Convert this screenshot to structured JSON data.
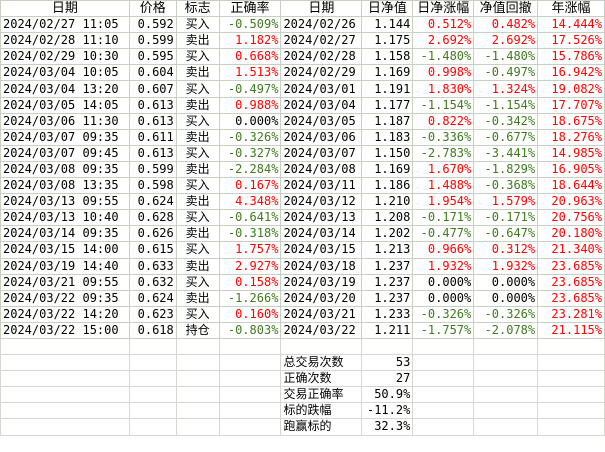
{
  "colors": {
    "positive": "#ff0000",
    "negative": "#3f7a1f",
    "neutral": "#000000",
    "grid": "#c8d0c4"
  },
  "headers": [
    "日期",
    "价格",
    "标志",
    "正确率",
    "日期",
    "日净值",
    "日净涨幅",
    "净值回撤",
    "年涨幅"
  ],
  "rows": [
    [
      "2024/02/27 11:05",
      "0.592",
      "买入",
      "-0.509%",
      "2024/02/26",
      "1.144",
      "0.512%",
      "0.482%",
      "14.444%"
    ],
    [
      "2024/02/28 11:10",
      "0.599",
      "卖出",
      "1.182%",
      "2024/02/27",
      "1.175",
      "2.692%",
      "2.692%",
      "17.526%"
    ],
    [
      "2024/02/29 10:30",
      "0.595",
      "买入",
      "0.668%",
      "2024/02/28",
      "1.158",
      "-1.480%",
      "-1.480%",
      "15.786%"
    ],
    [
      "2024/03/04 10:05",
      "0.604",
      "卖出",
      "1.513%",
      "2024/02/29",
      "1.169",
      "0.998%",
      "-0.497%",
      "16.942%"
    ],
    [
      "2024/03/04 13:20",
      "0.607",
      "买入",
      "-0.497%",
      "2024/03/01",
      "1.191",
      "1.830%",
      "1.324%",
      "19.082%"
    ],
    [
      "2024/03/05 14:05",
      "0.613",
      "卖出",
      "0.988%",
      "2024/03/04",
      "1.177",
      "-1.154%",
      "-1.154%",
      "17.707%"
    ],
    [
      "2024/03/06 11:30",
      "0.613",
      "买入",
      "0.000%",
      "2024/03/05",
      "1.187",
      "0.822%",
      "-0.342%",
      "18.675%"
    ],
    [
      "2024/03/07 09:35",
      "0.611",
      "卖出",
      "-0.326%",
      "2024/03/06",
      "1.183",
      "-0.336%",
      "-0.677%",
      "18.276%"
    ],
    [
      "2024/03/07 09:45",
      "0.613",
      "买入",
      "-0.327%",
      "2024/03/07",
      "1.150",
      "-2.783%",
      "-3.441%",
      "14.985%"
    ],
    [
      "2024/03/08 09:35",
      "0.599",
      "卖出",
      "-2.284%",
      "2024/03/08",
      "1.169",
      "1.670%",
      "-1.829%",
      "16.905%"
    ],
    [
      "2024/03/08 13:35",
      "0.598",
      "买入",
      "0.167%",
      "2024/03/11",
      "1.186",
      "1.488%",
      "-0.368%",
      "18.644%"
    ],
    [
      "2024/03/13 09:55",
      "0.624",
      "卖出",
      "4.348%",
      "2024/03/12",
      "1.210",
      "1.954%",
      "1.579%",
      "20.963%"
    ],
    [
      "2024/03/13 10:40",
      "0.628",
      "买入",
      "-0.641%",
      "2024/03/13",
      "1.208",
      "-0.171%",
      "-0.171%",
      "20.756%"
    ],
    [
      "2024/03/14 09:35",
      "0.626",
      "卖出",
      "-0.318%",
      "2024/03/14",
      "1.202",
      "-0.477%",
      "-0.647%",
      "20.180%"
    ],
    [
      "2024/03/15 14:00",
      "0.615",
      "买入",
      "1.757%",
      "2024/03/15",
      "1.213",
      "0.966%",
      "0.312%",
      "21.340%"
    ],
    [
      "2024/03/19 14:40",
      "0.633",
      "卖出",
      "2.927%",
      "2024/03/18",
      "1.237",
      "1.932%",
      "1.932%",
      "23.685%"
    ],
    [
      "2024/03/21 09:55",
      "0.632",
      "买入",
      "0.158%",
      "2024/03/19",
      "1.237",
      "0.000%",
      "0.000%",
      "23.685%"
    ],
    [
      "2024/03/22 09:35",
      "0.624",
      "卖出",
      "-1.266%",
      "2024/03/20",
      "1.237",
      "0.000%",
      "0.000%",
      "23.685%"
    ],
    [
      "2024/03/22 14:20",
      "0.623",
      "买入",
      "0.160%",
      "2024/03/21",
      "1.233",
      "-0.326%",
      "-0.326%",
      "23.281%"
    ],
    [
      "2024/03/22 15:00",
      "0.618",
      "持仓",
      "-0.803%",
      "2024/03/22",
      "1.211",
      "-1.757%",
      "-2.078%",
      "21.115%"
    ]
  ],
  "stats": [
    {
      "label": "总交易次数",
      "value": "53"
    },
    {
      "label": "正确次数",
      "value": "27"
    },
    {
      "label": "交易正确率",
      "value": "50.9%"
    },
    {
      "label": "标的跌幅",
      "value": "-11.2%"
    },
    {
      "label": "跑赢标的",
      "value": "32.3%"
    }
  ]
}
